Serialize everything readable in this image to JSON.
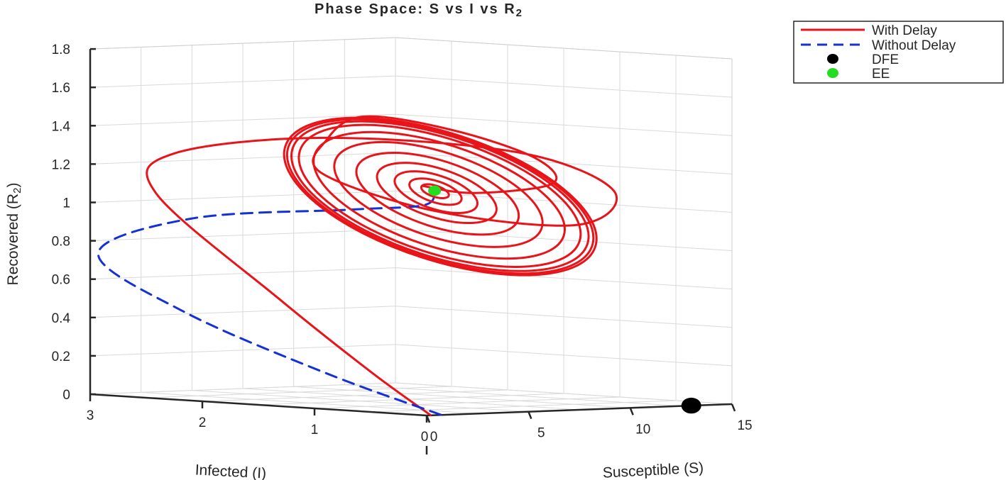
{
  "chart_data": {
    "type": "line3d",
    "title": "Phase Space: S vs I vs R",
    "title_subscript": "2",
    "xlabel": "Infected (I)",
    "ylabel": "Susceptible (S)",
    "zlabel": "Recovered (R",
    "zlabel_subscript": "2",
    "zlabel_suffix": ")",
    "xlim": [
      0,
      3
    ],
    "ylim": [
      0,
      15
    ],
    "zlim": [
      0,
      1.8
    ],
    "x_ticks": [
      "0",
      "1",
      "2",
      "3"
    ],
    "y_ticks": [
      "0",
      "5",
      "10",
      "15"
    ],
    "z_ticks": [
      "0",
      "0.2",
      "0.4",
      "0.6",
      "0.8",
      "1",
      "1.2",
      "1.4",
      "1.6",
      "1.8"
    ],
    "grid": true,
    "legend_position": "top-right outside",
    "series": [
      {
        "name": "With Delay",
        "style": "solid",
        "color": "#e8141a",
        "description": "spirals from origin up to a damped oscillation around the endemic equilibrium",
        "points": [
          [
            0.02,
            0.3,
            0.0
          ],
          [
            0.6,
            0.6,
            0.2
          ],
          [
            1.5,
            1.0,
            0.55
          ],
          [
            2.7,
            1.6,
            1.05
          ],
          [
            2.8,
            3.0,
            1.25
          ],
          [
            2.0,
            6.0,
            1.35
          ],
          [
            0.9,
            9.5,
            1.3
          ],
          [
            0.6,
            12.5,
            1.1
          ],
          [
            1.1,
            13.5,
            0.9
          ],
          [
            1.9,
            11.0,
            0.95
          ],
          [
            2.3,
            7.5,
            1.15
          ],
          [
            1.8,
            5.0,
            1.35
          ],
          [
            1.2,
            3.5,
            1.5
          ],
          [
            0.6,
            4.5,
            1.45
          ],
          [
            0.4,
            7.5,
            1.3
          ],
          [
            0.6,
            9.5,
            1.15
          ],
          [
            1.2,
            9.0,
            1.08
          ],
          [
            1.3,
            7.0,
            1.12
          ]
        ]
      },
      {
        "name": "Without Delay",
        "style": "dashed",
        "color": "#1531d6",
        "points": [
          [
            0.02,
            0.8,
            0.0
          ],
          [
            1.0,
            0.6,
            0.18
          ],
          [
            2.3,
            0.8,
            0.45
          ],
          [
            3.2,
            1.5,
            0.72
          ],
          [
            2.6,
            2.8,
            0.92
          ],
          [
            1.5,
            4.5,
            1.0
          ],
          [
            1.15,
            6.2,
            1.03
          ],
          [
            1.2,
            7.0,
            1.1
          ]
        ]
      }
    ],
    "markers": [
      {
        "name": "DFE",
        "color": "#000000",
        "point": [
          0.0,
          13.0,
          0.0
        ],
        "size": "large"
      },
      {
        "name": "EE",
        "color": "#22dd22",
        "point": [
          1.2,
          7.0,
          1.1
        ],
        "size": "medium"
      }
    ]
  }
}
